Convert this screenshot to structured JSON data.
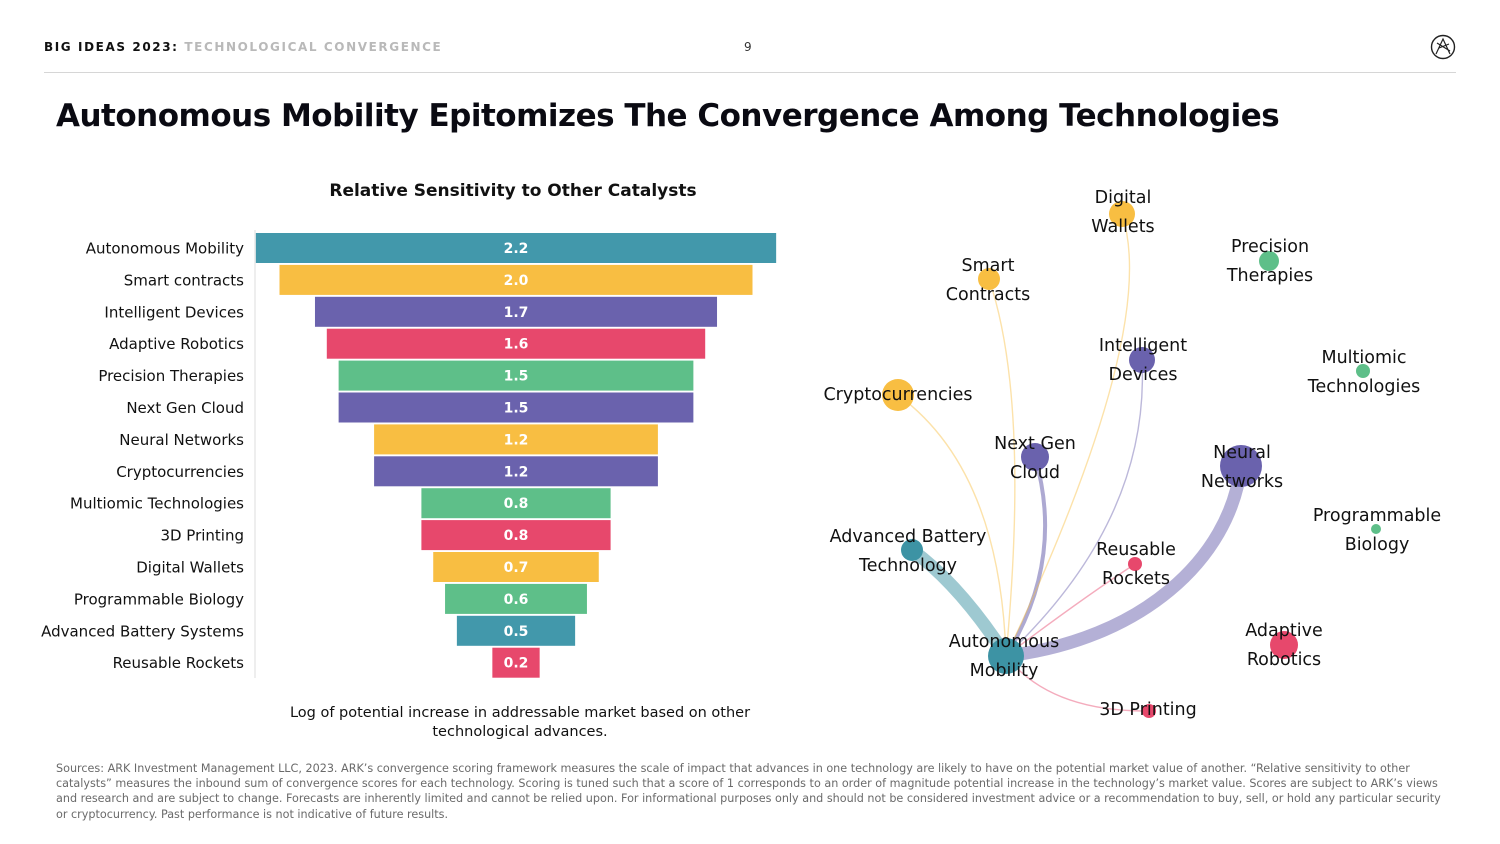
{
  "header": {
    "brand": "BIG IDEAS 2023",
    "separator": ":",
    "topic": "TECHNOLOGICAL CONVERGENCE",
    "page": "9"
  },
  "logo": {
    "icon": "ark-logo-icon"
  },
  "title": "Autonomous Mobility Epitomizes The Convergence Among Technologies",
  "colors": {
    "teal": "#4298ab",
    "yellow": "#f8be42",
    "purple": "#6a62ad",
    "pink": "#e7486c",
    "green": "#5ebf89",
    "blueteal": "#3d93a4"
  },
  "chart_data": [
    {
      "type": "bar",
      "orientation": "horizontal-centered",
      "title": "Relative Sensitivity to Other Catalysts",
      "xlabel": "Log of potential increase in addressable market based on other technological advances.",
      "categories": [
        "Autonomous Mobility",
        "Smart contracts",
        "Intelligent Devices",
        "Adaptive Robotics",
        "Precision Therapies",
        "Next Gen Cloud",
        "Neural Networks",
        "Cryptocurrencies",
        "Multiomic Technologies",
        "3D Printing",
        "Digital Wallets",
        "Programmable Biology",
        "Advanced Battery Systems",
        "Reusable Rockets"
      ],
      "values": [
        2.2,
        2.0,
        1.7,
        1.6,
        1.5,
        1.5,
        1.2,
        1.2,
        0.8,
        0.8,
        0.7,
        0.6,
        0.5,
        0.2
      ],
      "value_labels": [
        "2.2",
        "2.0",
        "1.7",
        "1.6",
        "1.5",
        "1.5",
        "1.2",
        "1.2",
        "0.8",
        "0.8",
        "0.7",
        "0.6",
        "0.5",
        "0.2"
      ],
      "bar_colors": [
        "#4298ab",
        "#f8be42",
        "#6a62ad",
        "#e7486c",
        "#5ebf89",
        "#6a62ad",
        "#f8be42",
        "#6a62ad",
        "#5ebf89",
        "#e7486c",
        "#f8be42",
        "#5ebf89",
        "#4298ab",
        "#e7486c"
      ]
    },
    {
      "type": "network",
      "hub": "Autonomous Mobility",
      "nodes": [
        {
          "id": "autonomous-mobility",
          "label": [
            "Autonomous",
            "Mobility"
          ],
          "color": "#3d93a4"
        },
        {
          "id": "digital-wallets",
          "label": [
            "Digital",
            "Wallets"
          ],
          "color": "#f8be42"
        },
        {
          "id": "precision-therapies",
          "label": [
            "Precision",
            "Therapies"
          ],
          "color": "#5ebf89"
        },
        {
          "id": "smart-contracts",
          "label": [
            "Smart",
            "Contracts"
          ],
          "color": "#f8be42"
        },
        {
          "id": "intelligent-devices",
          "label": [
            "Intelligent",
            "Devices"
          ],
          "color": "#6a62ad"
        },
        {
          "id": "multiomic-technologies",
          "label": [
            "Multiomic",
            "Technologies"
          ],
          "color": "#5ebf89"
        },
        {
          "id": "cryptocurrencies",
          "label": [
            "Cryptocurrencies"
          ],
          "color": "#f8be42"
        },
        {
          "id": "next-gen-cloud",
          "label": [
            "Next Gen",
            "Cloud"
          ],
          "color": "#6a62ad"
        },
        {
          "id": "neural-networks",
          "label": [
            "Neural",
            "Networks"
          ],
          "color": "#6a62ad"
        },
        {
          "id": "programmable-biology",
          "label": [
            "Programmable",
            "Biology"
          ],
          "color": "#5ebf89"
        },
        {
          "id": "advanced-battery",
          "label": [
            "Advanced Battery",
            "Technology"
          ],
          "color": "#3d93a4"
        },
        {
          "id": "reusable-rockets",
          "label": [
            "Reusable",
            "Rockets"
          ],
          "color": "#e7486c"
        },
        {
          "id": "adaptive-robotics",
          "label": [
            "Adaptive",
            "Robotics"
          ],
          "color": "#e7486c"
        },
        {
          "id": "3d-printing",
          "label": [
            "3D Printing"
          ],
          "color": "#e7486c"
        }
      ],
      "links": [
        {
          "from": "advanced-battery",
          "to": "autonomous-mobility",
          "strength": "high"
        },
        {
          "from": "neural-networks",
          "to": "autonomous-mobility",
          "strength": "high"
        },
        {
          "from": "next-gen-cloud",
          "to": "autonomous-mobility",
          "strength": "medium"
        },
        {
          "from": "intelligent-devices",
          "to": "autonomous-mobility",
          "strength": "low"
        },
        {
          "from": "digital-wallets",
          "to": "autonomous-mobility",
          "strength": "low"
        },
        {
          "from": "smart-contracts",
          "to": "autonomous-mobility",
          "strength": "low"
        },
        {
          "from": "cryptocurrencies",
          "to": "autonomous-mobility",
          "strength": "low"
        },
        {
          "from": "reusable-rockets",
          "to": "autonomous-mobility",
          "strength": "low"
        },
        {
          "from": "autonomous-mobility",
          "to": "3d-printing",
          "strength": "low"
        }
      ]
    }
  ],
  "footer": {
    "sources": "Sources: ARK Investment Management LLC, 2023. ARK’s convergence scoring framework measures the scale of impact that advances in one technology are likely to have on the potential market value of another. “Relative sensitivity to other catalysts” measures the inbound sum of convergence scores for each technology. Scoring is tuned such that a score of 1 corresponds to an order of magnitude potential increase in the technology’s market value. Scores are subject to ARK’s views and research and are subject to change. Forecasts are inherently limited and cannot be relied upon. For informational purposes only and should not be considered investment advice or a recommendation to buy, sell, or hold any particular security or cryptocurrency. Past performance is not indicative of future results."
  }
}
